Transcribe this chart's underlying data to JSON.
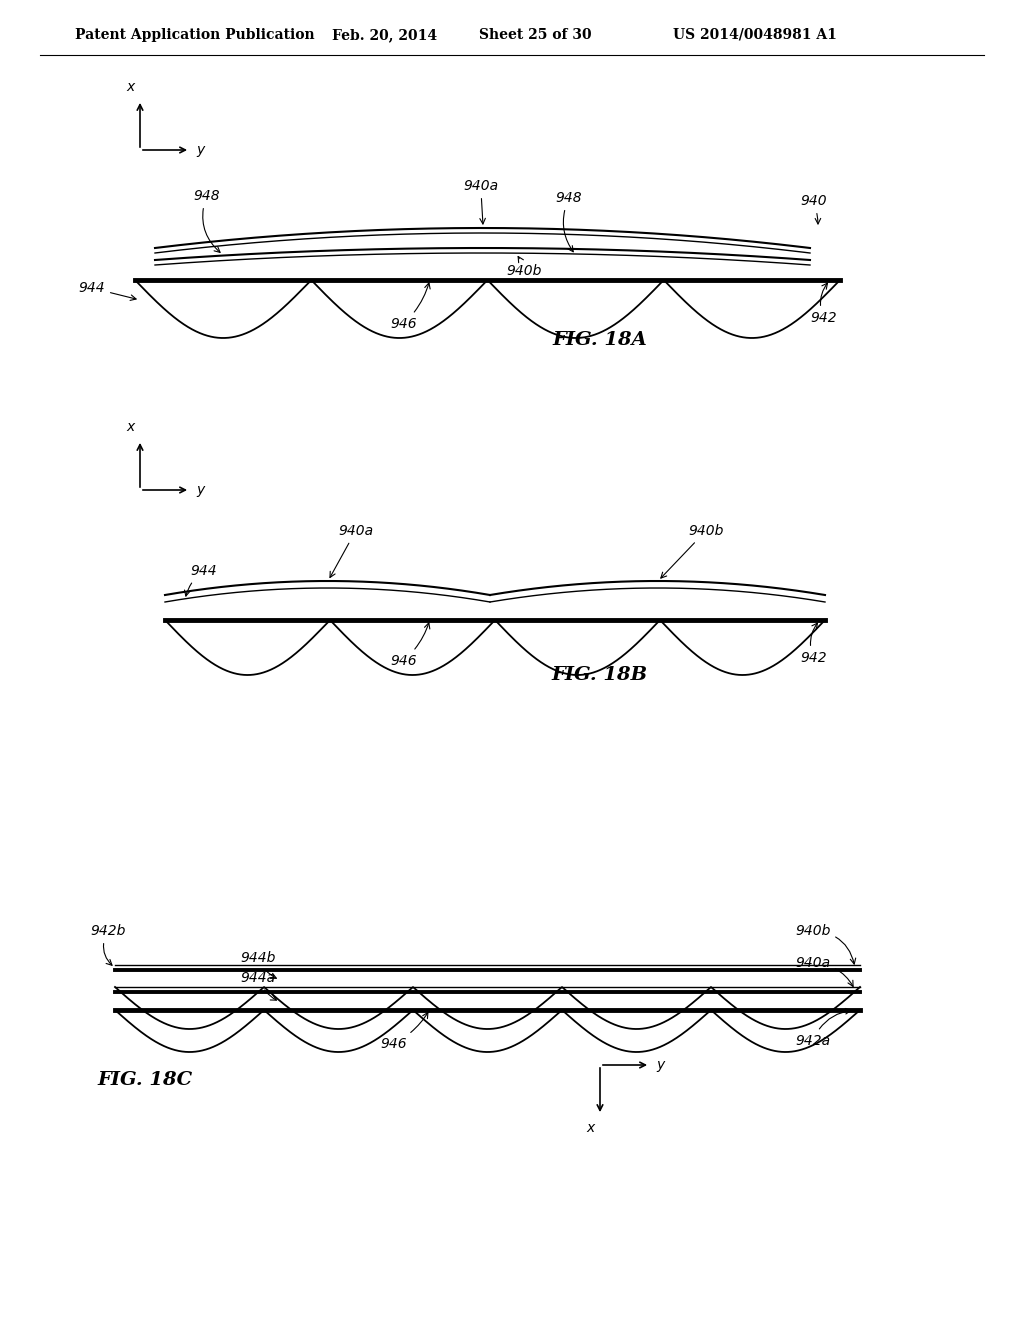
{
  "background_color": "#ffffff",
  "header_text": "Patent Application Publication",
  "header_date": "Feb. 20, 2014",
  "header_sheet": "Sheet 25 of 30",
  "header_patent": "US 2014/0048981 A1",
  "fig_labels": [
    "FIG. 18A",
    "FIG. 18B",
    "FIG. 18C"
  ],
  "fig_fontsize": 14,
  "label_fontsize": 10,
  "header_fontsize": 10
}
